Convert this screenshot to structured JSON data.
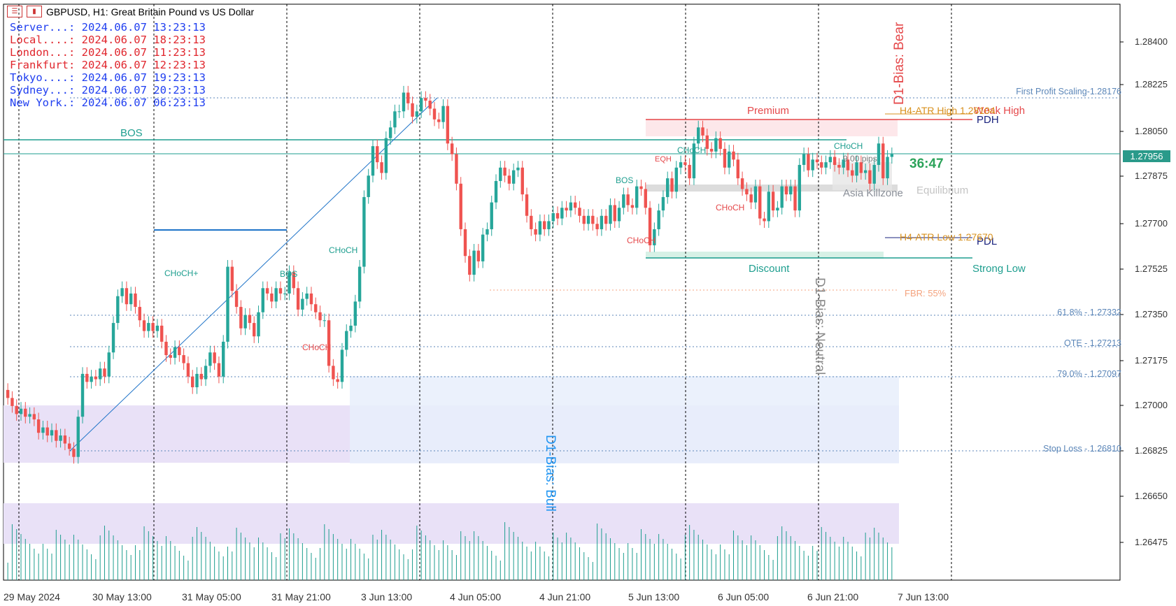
{
  "header": {
    "title": "GBPUSD, H1:  Great Britain Pound vs US Dollar"
  },
  "clocks": [
    {
      "label": "Server...: ",
      "time": "2024.06.07 13:23:13",
      "color": "#1f3ef0"
    },
    {
      "label": "Local....: ",
      "time": "2024.06.07 18:23:13",
      "color": "#e0262d"
    },
    {
      "label": "London...: ",
      "time": "2024.06.07 11:23:13",
      "color": "#e0262d"
    },
    {
      "label": "Frankfurt: ",
      "time": "2024.06.07 12:23:13",
      "color": "#e0262d"
    },
    {
      "label": "Tokyo....: ",
      "time": "2024.06.07 19:23:13",
      "color": "#1f3ef0"
    },
    {
      "label": "Sydney...: ",
      "time": "2024.06.07 20:23:13",
      "color": "#1f3ef0"
    },
    {
      "label": "New York.: ",
      "time": "2024.06.07 06:23:13",
      "color": "#1f3ef0"
    }
  ],
  "price_axis": [
    "1.28400",
    "1.28225",
    "1.28050",
    "1.27875",
    "1.27700",
    "1.27525",
    "1.27350",
    "1.27175",
    "1.27000",
    "1.26825",
    "1.26650",
    "1.26475"
  ],
  "current_price": "1.27956",
  "countdown": "36:47",
  "time_axis": [
    "29 May 2024",
    "30 May 13:00",
    "31 May 05:00",
    "31 May 21:00",
    "3 Jun 13:00",
    "4 Jun 05:00",
    "4 Jun 21:00",
    "5 Jun 13:00",
    "6 Jun 05:00",
    "6 Jun 21:00",
    "7 Jun 13:00"
  ],
  "labels": {
    "bos_main": "BOS",
    "premium": "Premium",
    "discount": "Discount",
    "equilibrium": "Equilibrium",
    "weak_high": "Weak High",
    "strong_low": "Strong Low",
    "pdh": "PDH",
    "pdl": "PDL",
    "h4_high": "H4-ATR High 1.28104",
    "h4_low": "H4-ATR Low 1.27670",
    "asia": "Asia Killzone",
    "pips": "9.00 pips",
    "fbr": "FBR: 55%",
    "fib_first": "First Profit Scaling-1.28176",
    "fib_618": "61.8% - 1.27332",
    "fib_ote": "OTE - 1.27213",
    "fib_79": "79.0% - 1.27097",
    "fib_sl": "Stop Loss - 1.26810",
    "bias_bear": "D1-Bias: Bear",
    "bias_bull": "D1-Bias: Bull",
    "bias_neutral": "D1-Bias: Neutral",
    "choch_plus": "CHoCH+",
    "choch": "CHoCH",
    "bos": "BOS",
    "eqh": "EQH"
  },
  "colors": {
    "bull": "#26a69a",
    "bear": "#ef5350",
    "teal": "#1e9e8f",
    "blue_line": "#1e73c8",
    "price_box": "#2a9a8a"
  },
  "chart_data": {
    "type": "candlestick",
    "symbol": "GBPUSD",
    "timeframe": "H1",
    "ylim": [
      1.2637,
      1.2852
    ],
    "close": [
      1.2705,
      1.2702,
      1.2699,
      1.2701,
      1.2698,
      1.2699,
      1.2697,
      1.2692,
      1.2694,
      1.2691,
      1.2693,
      1.2689,
      1.2691,
      1.2688,
      1.2686,
      1.2683,
      1.2698,
      1.2714,
      1.2711,
      1.2713,
      1.2712,
      1.2716,
      1.2713,
      1.2722,
      1.2733,
      1.2743,
      1.2746,
      1.274,
      1.2744,
      1.2739,
      1.2734,
      1.273,
      1.2733,
      1.273,
      1.2732,
      1.2726,
      1.2721,
      1.272,
      1.2724,
      1.2721,
      1.2718,
      1.2713,
      1.2709,
      1.2714,
      1.2712,
      1.2717,
      1.2722,
      1.2718,
      1.2713,
      1.2726,
      1.2754,
      1.2745,
      1.2739,
      1.2731,
      1.2736,
      1.2733,
      1.2728,
      1.2737,
      1.2746,
      1.2744,
      1.2741,
      1.2746,
      1.2744,
      1.2744,
      1.2752,
      1.2746,
      1.2738,
      1.2742,
      1.2744,
      1.274,
      1.2737,
      1.2734,
      1.2734,
      1.2717,
      1.2712,
      1.2711,
      1.2723,
      1.273,
      1.2732,
      1.2741,
      1.2754,
      1.278,
      1.2788,
      1.2799,
      1.2793,
      1.2789,
      1.2802,
      1.2806,
      1.2812,
      1.2812,
      1.2819,
      1.2815,
      1.281,
      1.2812,
      1.2817,
      1.2816,
      1.2813,
      1.2809,
      1.2808,
      1.2814,
      1.28,
      1.2796,
      1.2785,
      1.2768,
      1.2758,
      1.2751,
      1.276,
      1.2756,
      1.2766,
      1.2768,
      1.2778,
      1.2786,
      1.2791,
      1.2788,
      1.2785,
      1.279,
      1.2791,
      1.2781,
      1.2773,
      1.2768,
      1.2766,
      1.2771,
      1.2768,
      1.2771,
      1.2774,
      1.2772,
      1.2776,
      1.2775,
      1.2778,
      1.2776,
      1.2773,
      1.277,
      1.2773,
      1.277,
      1.2768,
      1.2773,
      1.277,
      1.2777,
      1.2771,
      1.2776,
      1.2781,
      1.2777,
      1.2776,
      1.2784,
      1.2783,
      1.2776,
      1.2762,
      1.2768,
      1.2775,
      1.278,
      1.2787,
      1.2782,
      1.2791,
      1.2793,
      1.2792,
      1.2787,
      1.28,
      1.2806,
      1.2803,
      1.2798,
      1.2797,
      1.2802,
      1.2798,
      1.2791,
      1.2797,
      1.2794,
      1.2787,
      1.2783,
      1.2781,
      1.2778,
      1.2784,
      1.2772,
      1.2771,
      1.2782,
      1.2775,
      1.2776,
      1.2784,
      1.2781,
      1.2784,
      1.2775,
      1.2792,
      1.2796,
      1.279,
      1.2794,
      1.2793,
      1.2791,
      1.2793,
      1.2795,
      1.2792,
      1.2791,
      1.2794,
      1.279,
      1.2788,
      1.2793,
      1.2789,
      1.279,
      1.2785,
      1.2792,
      1.28,
      1.2787,
      1.2795,
      1.2796
    ]
  }
}
